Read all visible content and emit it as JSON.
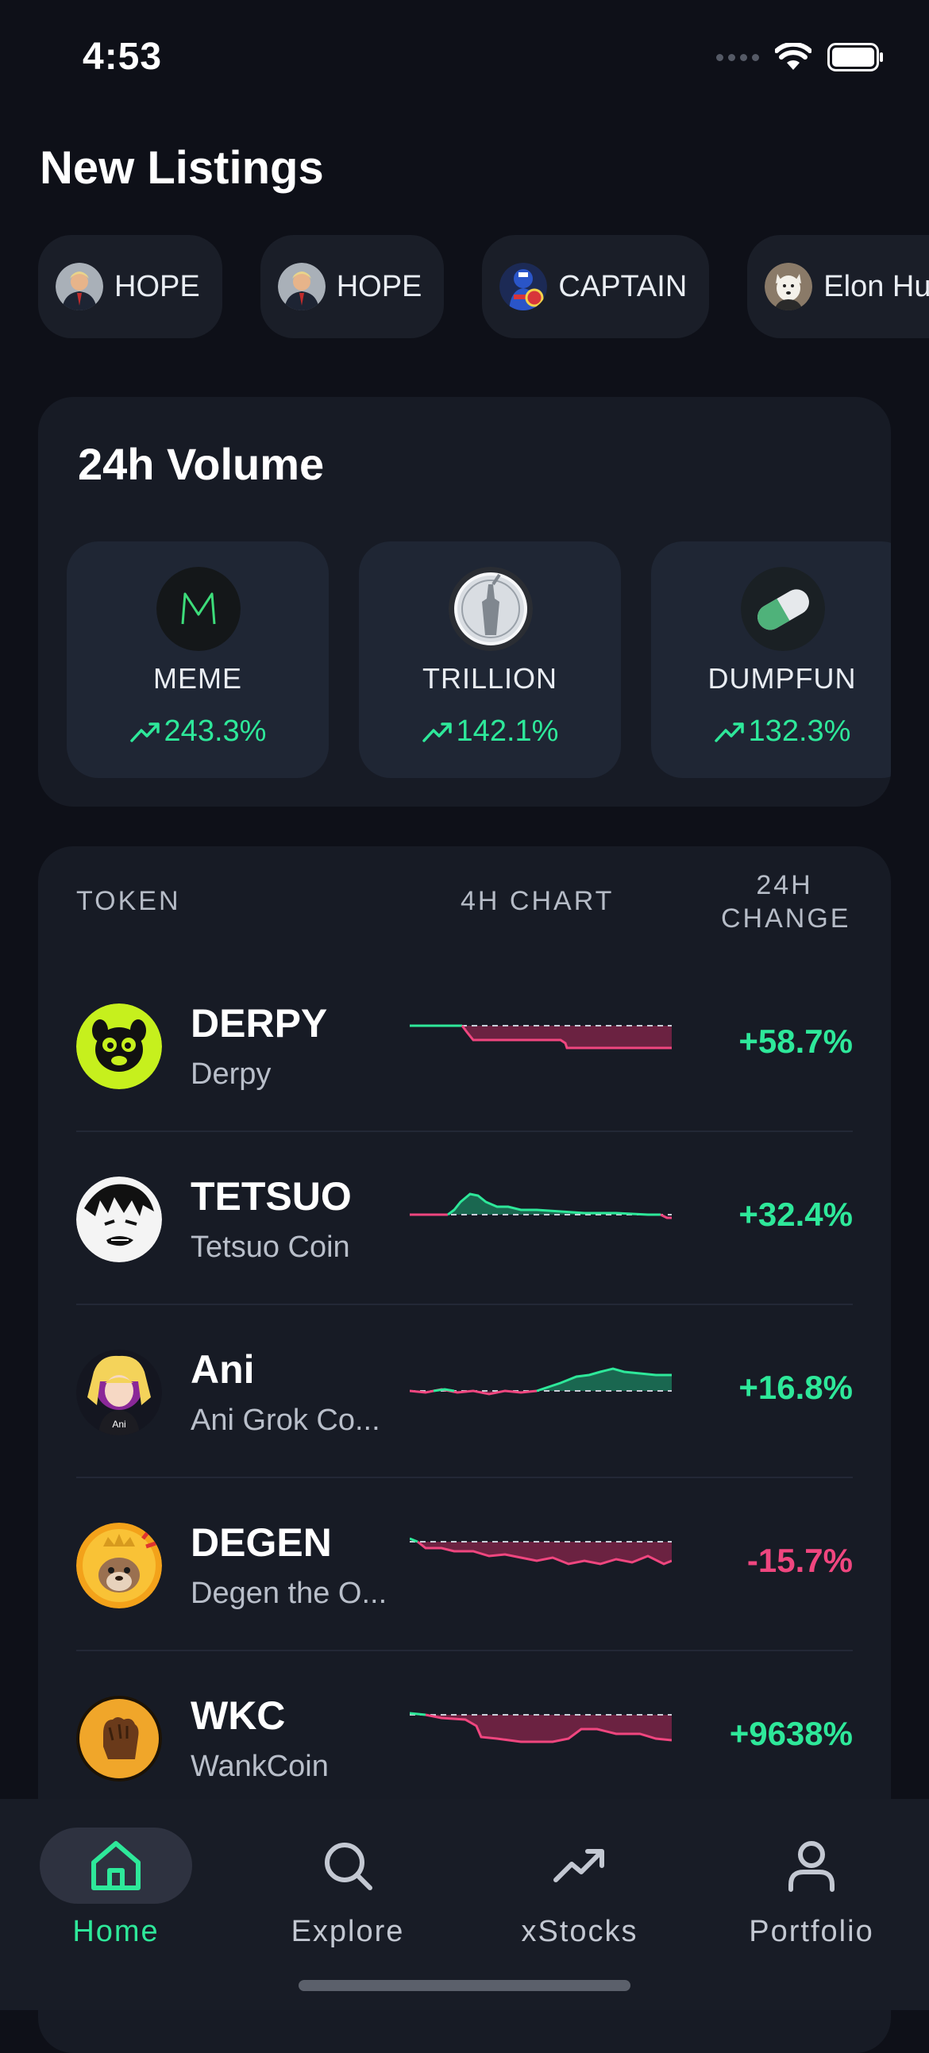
{
  "status_bar": {
    "time": "4:53"
  },
  "new_listings": {
    "title": "New Listings",
    "items": [
      {
        "label": "HOPE"
      },
      {
        "label": "HOPE"
      },
      {
        "label": "CAPTAIN"
      },
      {
        "label": "Elon Husky"
      }
    ]
  },
  "volume": {
    "title": "24h Volume",
    "items": [
      {
        "name": "MEME",
        "change": "243.3%"
      },
      {
        "name": "TRILLION",
        "change": "142.1%"
      },
      {
        "name": "DUMPFUN",
        "change": "132.3%"
      }
    ]
  },
  "token_table": {
    "headers": {
      "token": "TOKEN",
      "chart": "4H CHART",
      "change_line1": "24H",
      "change_line2": "CHANGE"
    },
    "rows": [
      {
        "symbol": "DERPY",
        "name": "Derpy",
        "change": "+58.7%"
      },
      {
        "symbol": "TETSUO",
        "name": "Tetsuo Coin",
        "change": "+32.4%"
      },
      {
        "symbol": "Ani",
        "name": "Ani Grok Co...",
        "change": "+16.8%",
        "icon_text": "Ani"
      },
      {
        "symbol": "DEGEN",
        "name": "Degen the O...",
        "change": "-15.7%"
      },
      {
        "symbol": "WKC",
        "name": "WankCoin",
        "change": "+9638%"
      }
    ]
  },
  "tab_bar": {
    "tabs": [
      {
        "label": "Home"
      },
      {
        "label": "Explore"
      },
      {
        "label": "xStocks"
      },
      {
        "label": "Portfolio"
      }
    ]
  },
  "colors": {
    "accent": "#2ee89a",
    "negative": "#f0467f",
    "background": "#0e1018",
    "card": "#171b25"
  }
}
